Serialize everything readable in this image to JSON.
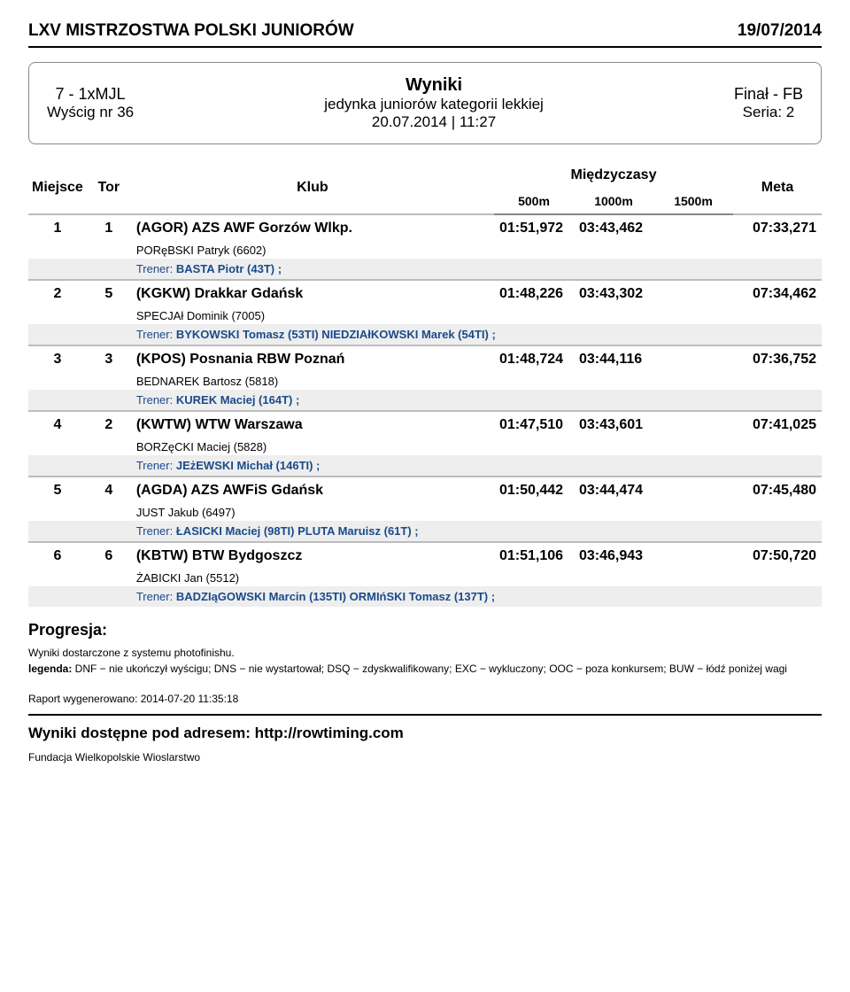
{
  "header": {
    "title": "LXV MISTRZOSTWA POLSKI JUNIORÓW",
    "date": "19/07/2014"
  },
  "card": {
    "left": {
      "event": "7 - 1xMJL",
      "race": "Wyścig nr 36"
    },
    "mid": {
      "title": "Wyniki",
      "sub": "jedynka juniorów kategorii lekkiej",
      "dt": "20.07.2014 | 11:27"
    },
    "right": {
      "final": "Finał - FB",
      "series": "Seria: 2"
    }
  },
  "table": {
    "headers": {
      "miejsce": "Miejsce",
      "tor": "Tor",
      "klub": "Klub",
      "miedzy": "Międzyczasy",
      "meta": "Meta",
      "s500": "500m",
      "s1000": "1000m",
      "s1500": "1500m"
    },
    "rows": [
      {
        "place": "1",
        "tor": "1",
        "klub": "(AGOR) AZS AWF Gorzów Wlkp.",
        "t500": "01:51,972",
        "t1000": "03:43,462",
        "t1500": "",
        "meta": "07:33,271",
        "athlete": "PORęBSKI Patryk (6602)",
        "trainer": "BASTA Piotr (43T) ;"
      },
      {
        "place": "2",
        "tor": "5",
        "klub": "(KGKW) Drakkar Gdańsk",
        "t500": "01:48,226",
        "t1000": "03:43,302",
        "t1500": "",
        "meta": "07:34,462",
        "athlete": "SPECJAł Dominik (7005)",
        "trainer": "BYKOWSKI Tomasz (53TI) NIEDZIAłKOWSKI Marek (54TI) ;"
      },
      {
        "place": "3",
        "tor": "3",
        "klub": "(KPOS) Posnania RBW Poznań",
        "t500": "01:48,724",
        "t1000": "03:44,116",
        "t1500": "",
        "meta": "07:36,752",
        "athlete": "BEDNAREK Bartosz (5818)",
        "trainer": "KUREK Maciej (164T) ;"
      },
      {
        "place": "4",
        "tor": "2",
        "klub": "(KWTW) WTW Warszawa",
        "t500": "01:47,510",
        "t1000": "03:43,601",
        "t1500": "",
        "meta": "07:41,025",
        "athlete": "BORZęCKI Maciej (5828)",
        "trainer": "JEżEWSKI Michał (146TI) ;"
      },
      {
        "place": "5",
        "tor": "4",
        "klub": "(AGDA) AZS AWFiS Gdańsk",
        "t500": "01:50,442",
        "t1000": "03:44,474",
        "t1500": "",
        "meta": "07:45,480",
        "athlete": "JUST Jakub (6497)",
        "trainer": "ŁASICKI Maciej (98TI) PLUTA Maruisz (61T) ;"
      },
      {
        "place": "6",
        "tor": "6",
        "klub": "(KBTW) BTW Bydgoszcz",
        "t500": "01:51,106",
        "t1000": "03:46,943",
        "t1500": "",
        "meta": "07:50,720",
        "athlete": "ŻABICKI Jan (5512)",
        "trainer": "BADZIąGOWSKI Marcin (135TI) ORMIńSKI Tomasz (137T) ;"
      }
    ]
  },
  "labels": {
    "trener": "Trener:",
    "progresja": "Progresja:",
    "photo": "Wyniki dostarczone z systemu photofinishu.",
    "legend_label": "legenda:",
    "legend_body": " DNF − nie ukończył wyścigu; DNS − nie wystartował; DSQ − zdyskwalifikowany; EXC − wykluczony; OOC − poza konkursem; BUW − łódź poniżej wagi",
    "raport": "Raport wygenerowano: 2014-07-20 11:35:18",
    "footer": "Wyniki dostępne pod adresem: http://rowtiming.com",
    "fund": "Fundacja Wielkopolskie Wioslarstwo"
  }
}
